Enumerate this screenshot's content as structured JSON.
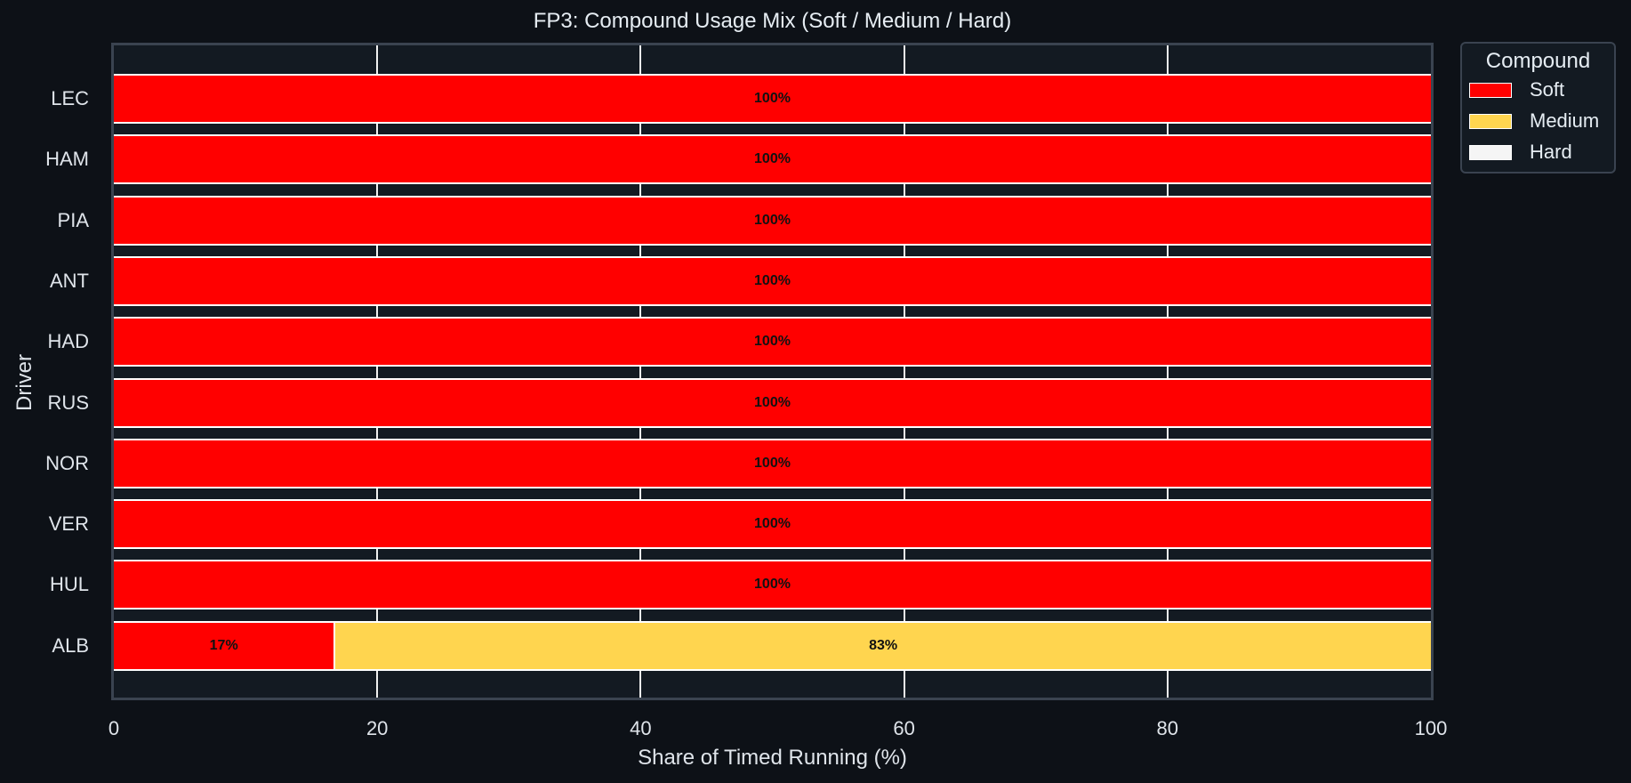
{
  "chart_data": {
    "type": "bar",
    "orientation": "horizontal",
    "stacked": true,
    "title": "FP3: Compound Usage Mix (Soft / Medium / Hard)",
    "xlabel": "Share of Timed Running (%)",
    "ylabel": "Driver",
    "xlim": [
      0,
      100
    ],
    "xticks": [
      "0",
      "20",
      "40",
      "60",
      "80",
      "100"
    ],
    "grid": "vertical",
    "legend_position": "outside-right-top",
    "categories": [
      "LEC",
      "HAM",
      "PIA",
      "ANT",
      "HAD",
      "RUS",
      "NOR",
      "VER",
      "HUL",
      "ALB"
    ],
    "series": [
      {
        "name": "Soft",
        "color": "#ff0000",
        "values": [
          100,
          100,
          100,
          100,
          100,
          100,
          100,
          100,
          100,
          16.7
        ]
      },
      {
        "name": "Medium",
        "color": "#ffd54f",
        "values": [
          0,
          0,
          0,
          0,
          0,
          0,
          0,
          0,
          0,
          83.3
        ]
      },
      {
        "name": "Hard",
        "color": "#f5f5f5",
        "values": [
          0,
          0,
          0,
          0,
          0,
          0,
          0,
          0,
          0,
          0
        ]
      }
    ],
    "bar_labels": [
      [
        "100%"
      ],
      [
        "100%"
      ],
      [
        "100%"
      ],
      [
        "100%"
      ],
      [
        "100%"
      ],
      [
        "100%"
      ],
      [
        "100%"
      ],
      [
        "100%"
      ],
      [
        "100%"
      ],
      [
        "17%",
        "83%"
      ]
    ]
  },
  "legend": {
    "title": "Compound",
    "items": [
      {
        "label": "Soft",
        "color": "#ff0000"
      },
      {
        "label": "Medium",
        "color": "#ffd54f"
      },
      {
        "label": "Hard",
        "color": "#f5f5f5"
      }
    ]
  },
  "colors": {
    "background": "#0d1117",
    "plot_background": "#131a22",
    "frame": "#3a4350",
    "text": "#e6edf3"
  }
}
